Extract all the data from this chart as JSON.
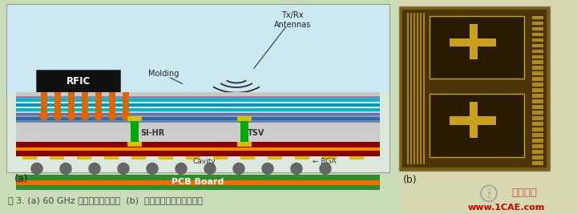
{
  "bg_color": "#c8ddb8",
  "panel_a_bg": "#e0e0e0",
  "caption": "图 3. (a) 60 GHz 模块的示意截面与  (b)  硅中个层芯片显微照片。",
  "caption_color": "#444444",
  "label_a": "(a)",
  "label_b": "(b)",
  "watermark_text": "www.1CAE.com",
  "watermark_color": "#cc0000",
  "colors": {
    "pcb": "#2d8c2d",
    "pcb_stripe": "#ff6600",
    "bga_ball": "#666666",
    "yellow_pad": "#ddbb00",
    "dark_red": "#880000",
    "tsv_green": "#00aa00",
    "orange_via": "#dd6600",
    "rfic": "#111111",
    "rfic_text": "#ffffff",
    "antenna_arc": "#222222"
  }
}
